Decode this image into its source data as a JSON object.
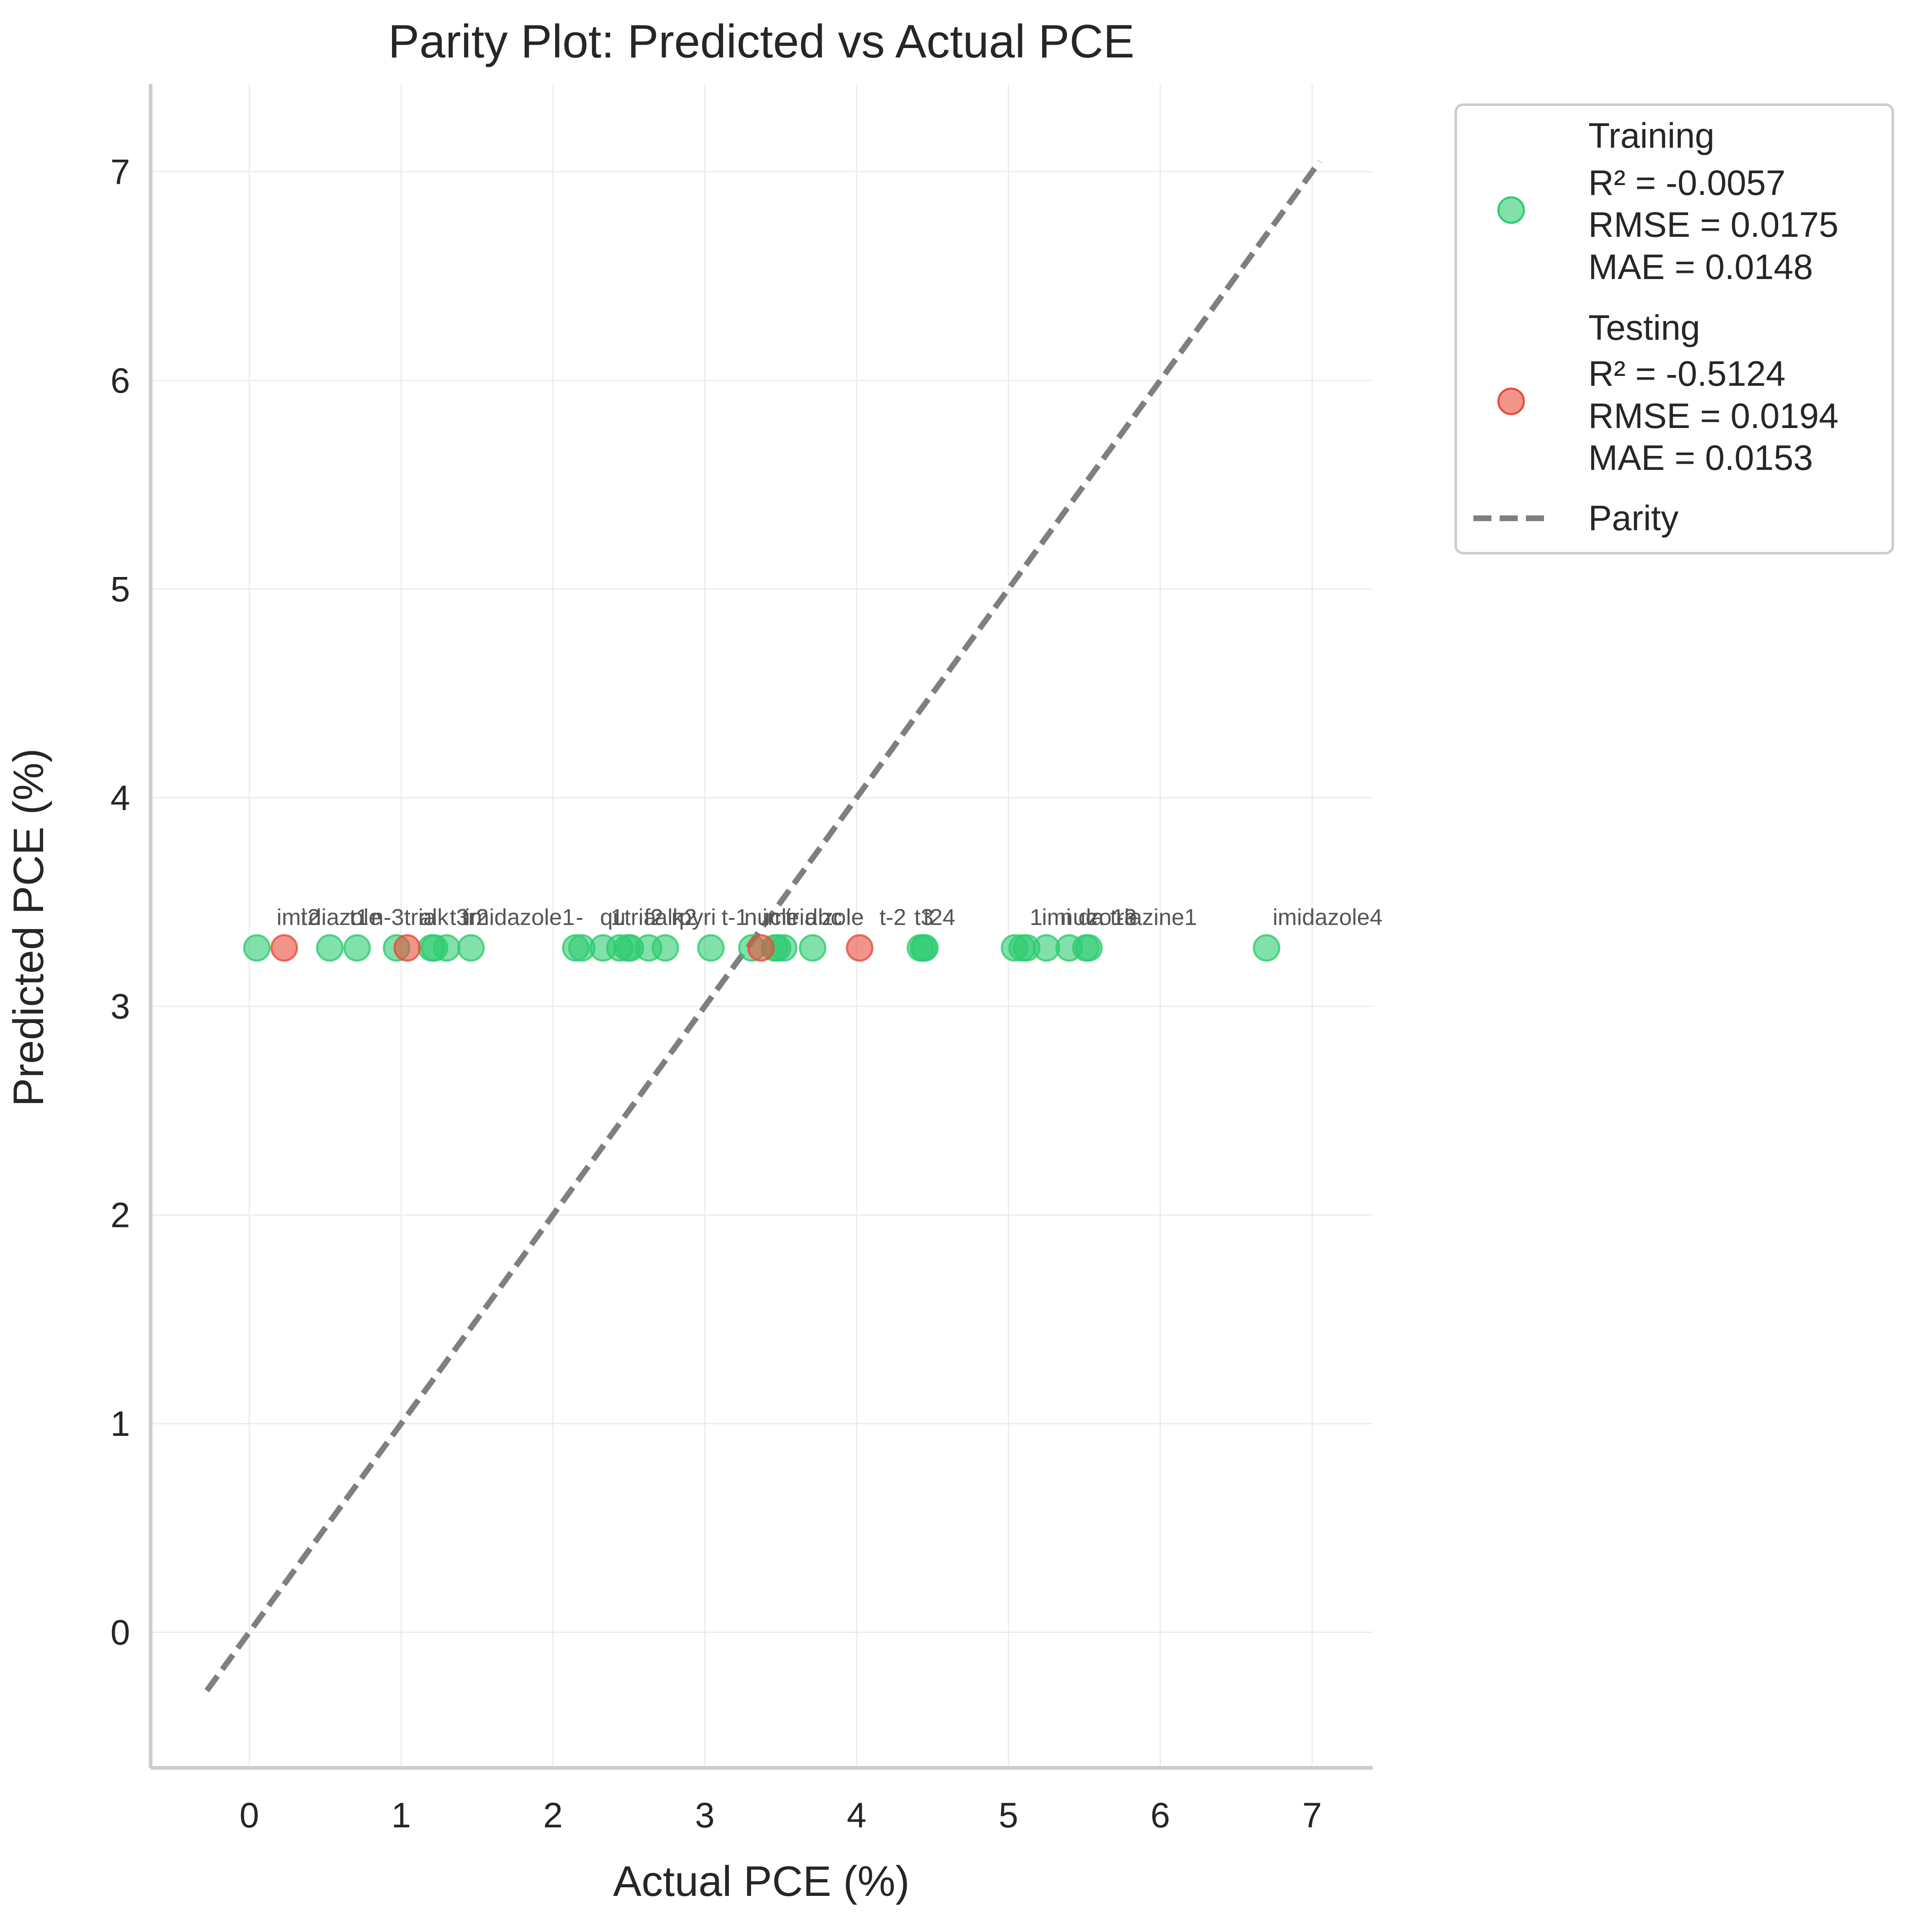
{
  "chart_data": {
    "type": "scatter",
    "title": "Parity Plot: Predicted vs Actual PCE",
    "xlabel": "Actual PCE (%)",
    "ylabel": "Predicted PCE (%)",
    "xlim": [
      -0.65,
      7.4
    ],
    "ylim": [
      -0.65,
      7.42
    ],
    "xticks": [
      0,
      1,
      2,
      3,
      4,
      5,
      6,
      7
    ],
    "yticks": [
      0,
      1,
      2,
      3,
      4,
      5,
      6,
      7
    ],
    "grid": true,
    "legend_position": "outside-top-right",
    "colors": {
      "training": "#2ecc71",
      "testing": "#e74c3c",
      "parity": "#7f7f7f",
      "axis": "#cccccc",
      "grid": "#ebebeb",
      "text": "#262626",
      "annotation": "#555555"
    },
    "series": [
      {
        "name": "Training",
        "legend_lines": [
          "Training",
          "R² = -0.0057",
          "RMSE = 0.0175",
          "MAE = 0.0148"
        ],
        "x": [
          0.05,
          0.53,
          0.71,
          0.97,
          1.2,
          1.22,
          1.3,
          1.46,
          2.15,
          2.19,
          2.33,
          2.44,
          2.49,
          2.51,
          2.63,
          2.74,
          3.04,
          3.31,
          3.46,
          3.48,
          3.52,
          3.71,
          4.42,
          4.44,
          4.45,
          5.04,
          5.09,
          5.12,
          5.25,
          5.4,
          5.51,
          5.53,
          6.7
        ],
        "y": [
          3.28,
          3.28,
          3.28,
          3.28,
          3.28,
          3.28,
          3.28,
          3.28,
          3.28,
          3.28,
          3.28,
          3.28,
          3.28,
          3.28,
          3.28,
          3.28,
          3.28,
          3.28,
          3.28,
          3.28,
          3.28,
          3.28,
          3.28,
          3.28,
          3.28,
          3.28,
          3.28,
          3.28,
          3.28,
          3.28,
          3.28,
          3.28,
          3.28
        ]
      },
      {
        "name": "Testing",
        "legend_lines": [
          "Testing",
          "R² = -0.5124",
          "RMSE = 0.0194",
          "MAE = 0.0153"
        ],
        "x": [
          0.23,
          1.04,
          3.37,
          4.02
        ],
        "y": [
          3.28,
          3.28,
          3.28,
          3.28
        ]
      }
    ],
    "parity_line": {
      "name": "Parity",
      "from": [
        -0.28,
        -0.28
      ],
      "to": [
        7.05,
        7.05
      ]
    },
    "annotations": [
      {
        "text": "imi",
        "x": 0.18,
        "y": 3.39
      },
      {
        "text": "t2",
        "x": 0.34,
        "y": 3.39
      },
      {
        "text": "diazole",
        "x": 0.39,
        "y": 3.39
      },
      {
        "text": "t1",
        "x": 0.66,
        "y": 3.39
      },
      {
        "text": "n-3",
        "x": 0.8,
        "y": 3.39
      },
      {
        "text": "tria",
        "x": 1.02,
        "y": 3.39
      },
      {
        "text": "alk",
        "x": 1.12,
        "y": 3.39
      },
      {
        "text": "t3",
        "x": 1.32,
        "y": 3.39
      },
      {
        "text": "tr2",
        "x": 1.4,
        "y": 3.39
      },
      {
        "text": "imidazole1",
        "x": 1.42,
        "y": 3.39
      },
      {
        "text": "-",
        "x": 2.15,
        "y": 3.39
      },
      {
        "text": "qu",
        "x": 2.31,
        "y": 3.39
      },
      {
        "text": "1",
        "x": 2.38,
        "y": 3.39
      },
      {
        "text": "tria",
        "x": 2.47,
        "y": 3.39
      },
      {
        "text": "f2",
        "x": 2.6,
        "y": 3.39
      },
      {
        "text": "alk",
        "x": 2.67,
        "y": 3.39
      },
      {
        "text": "n2",
        "x": 2.78,
        "y": 3.39
      },
      {
        "text": "pyri",
        "x": 2.83,
        "y": 3.39
      },
      {
        "text": "t-1",
        "x": 3.11,
        "y": 3.39
      },
      {
        "text": "nucle",
        "x": 3.26,
        "y": 3.39
      },
      {
        "text": "imi",
        "x": 3.38,
        "y": 3.39
      },
      {
        "text": "tria",
        "x": 3.53,
        "y": 3.39
      },
      {
        "text": "dbc",
        "x": 3.66,
        "y": 3.39
      },
      {
        "text": "zole",
        "x": 3.77,
        "y": 3.39
      },
      {
        "text": "t-2",
        "x": 4.15,
        "y": 3.39
      },
      {
        "text": "t3",
        "x": 4.38,
        "y": 3.39
      },
      {
        "text": "t24",
        "x": 4.44,
        "y": 3.39
      },
      {
        "text": "1",
        "x": 5.14,
        "y": 3.39
      },
      {
        "text": "imi",
        "x": 5.22,
        "y": 3.39
      },
      {
        "text": "nuc",
        "x": 5.34,
        "y": 3.39
      },
      {
        "text": "da",
        "x": 5.46,
        "y": 3.39
      },
      {
        "text": "zo1e",
        "x": 5.52,
        "y": 3.39
      },
      {
        "text": "-3",
        "x": 5.71,
        "y": 3.39
      },
      {
        "text": "triazine1",
        "x": 5.67,
        "y": 3.39
      },
      {
        "text": "imidazole4",
        "x": 6.74,
        "y": 3.39
      }
    ]
  }
}
